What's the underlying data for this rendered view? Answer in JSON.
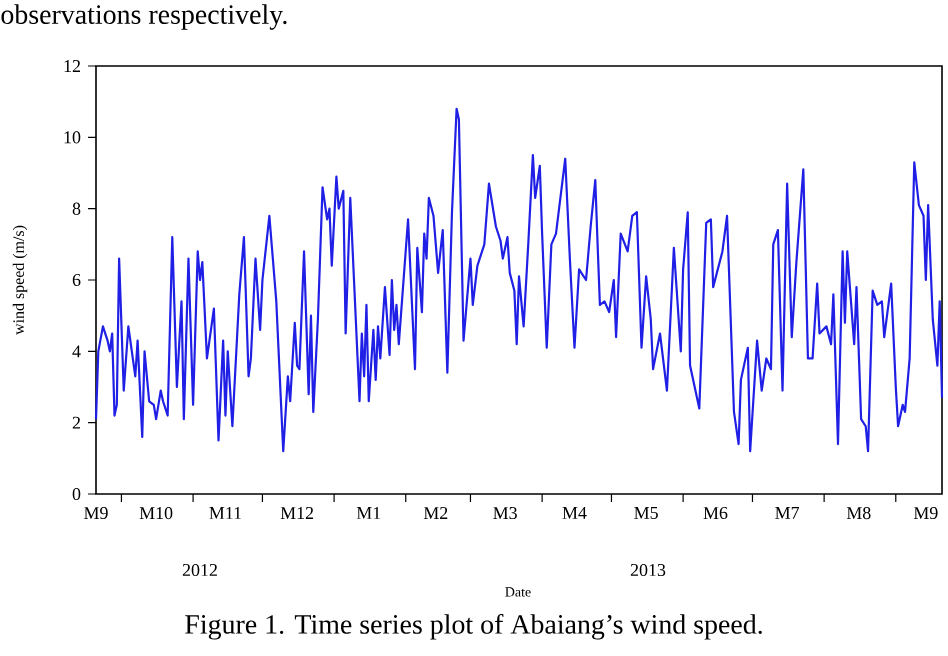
{
  "chart_data": {
    "type": "line",
    "title": "Figure 1. Time series plot of Abaiang’s wind speed.",
    "xlabel": "Date",
    "ylabel": "wind speed (m/s)",
    "annotations": [
      "observations respectively.",
      "2012",
      "2013"
    ],
    "xlim": [
      "2012-09-20",
      "2013-09-21"
    ],
    "xticks": [
      {
        "value": "2012-09-20",
        "label": "M9"
      },
      {
        "value": "2012-10-16",
        "label": "M10"
      },
      {
        "value": "2012-11-15",
        "label": "M11"
      },
      {
        "value": "2012-12-16",
        "label": "M12"
      },
      {
        "value": "2013-01-16",
        "label": "M1"
      },
      {
        "value": "2013-02-14",
        "label": "M2"
      },
      {
        "value": "2013-03-16",
        "label": "M3"
      },
      {
        "value": "2013-04-15",
        "label": "M4"
      },
      {
        "value": "2013-05-16",
        "label": "M5"
      },
      {
        "value": "2013-06-15",
        "label": "M6"
      },
      {
        "value": "2013-07-16",
        "label": "M7"
      },
      {
        "value": "2013-08-16",
        "label": "M8"
      },
      {
        "value": "2013-09-14",
        "label": "M9"
      },
      {
        "value": "2012-10-01",
        "label": null
      },
      {
        "value": "2012-11-01",
        "label": null
      },
      {
        "value": "2012-12-01",
        "label": null
      },
      {
        "value": "2013-01-01",
        "label": null
      },
      {
        "value": "2013-02-01",
        "label": null
      },
      {
        "value": "2013-03-01",
        "label": null
      },
      {
        "value": "2013-04-01",
        "label": null
      },
      {
        "value": "2013-05-01",
        "label": null
      },
      {
        "value": "2013-06-01",
        "label": null
      },
      {
        "value": "2013-07-01",
        "label": null
      },
      {
        "value": "2013-08-01",
        "label": null
      },
      {
        "value": "2013-09-01",
        "label": null
      }
    ],
    "ylim": [
      0,
      12
    ],
    "yticks": [
      0,
      2,
      4,
      6,
      8,
      10,
      12
    ],
    "series": [
      {
        "color": "#1f1fe6",
        "x": [
          "2012-09-20",
          "2012-09-21",
          "2012-09-23",
          "2012-09-25",
          "2012-09-26",
          "2012-09-27",
          "2012-09-28",
          "2012-09-29",
          "2012-09-30",
          "2012-10-02",
          "2012-10-04",
          "2012-10-07",
          "2012-10-08",
          "2012-10-10",
          "2012-10-11",
          "2012-10-13",
          "2012-10-15",
          "2012-10-16",
          "2012-10-18",
          "2012-10-19",
          "2012-10-21",
          "2012-10-23",
          "2012-10-25",
          "2012-10-27",
          "2012-10-28",
          "2012-10-30",
          "2012-11-01",
          "2012-11-03",
          "2012-11-04",
          "2012-11-05",
          "2012-11-07",
          "2012-11-10",
          "2012-11-12",
          "2012-11-14",
          "2012-11-15",
          "2012-11-16",
          "2012-11-18",
          "2012-11-21",
          "2012-11-23",
          "2012-11-25",
          "2012-11-26",
          "2012-11-28",
          "2012-11-30",
          "2012-12-01",
          "2012-12-04",
          "2012-12-07",
          "2012-12-10",
          "2012-12-12",
          "2012-12-13",
          "2012-12-15",
          "2012-12-16",
          "2012-12-17",
          "2012-12-19",
          "2012-12-21",
          "2012-12-22",
          "2012-12-23",
          "2012-12-25",
          "2012-12-27",
          "2012-12-29",
          "2012-12-30",
          "2012-12-31",
          "2013-01-02",
          "2013-01-03",
          "2013-01-05",
          "2013-01-06",
          "2013-01-08",
          "2013-01-12",
          "2013-01-13",
          "2013-01-14",
          "2013-01-15",
          "2013-01-16",
          "2013-01-18",
          "2013-01-19",
          "2013-01-20",
          "2013-01-21",
          "2013-01-23",
          "2013-01-25",
          "2013-01-26",
          "2013-01-27",
          "2013-01-28",
          "2013-01-29",
          "2013-02-02",
          "2013-02-05",
          "2013-02-06",
          "2013-02-08",
          "2013-02-09",
          "2013-02-10",
          "2013-02-11",
          "2013-02-13",
          "2013-02-15",
          "2013-02-17",
          "2013-02-19",
          "2013-02-21",
          "2013-02-23",
          "2013-02-24",
          "2013-02-26",
          "2013-03-01",
          "2013-03-02",
          "2013-03-04",
          "2013-03-07",
          "2013-03-09",
          "2013-03-11",
          "2013-03-12",
          "2013-03-14",
          "2013-03-15",
          "2013-03-17",
          "2013-03-18",
          "2013-03-20",
          "2013-03-21",
          "2013-03-22",
          "2013-03-24",
          "2013-03-26",
          "2013-03-28",
          "2013-03-29",
          "2013-03-31",
          "2013-04-01",
          "2013-04-03",
          "2013-04-05",
          "2013-04-07",
          "2013-04-11",
          "2013-04-13",
          "2013-04-15",
          "2013-04-17",
          "2013-04-20",
          "2013-04-22",
          "2013-04-24",
          "2013-04-25",
          "2013-04-26",
          "2013-04-28",
          "2013-04-30",
          "2013-05-02",
          "2013-05-03",
          "2013-05-05",
          "2013-05-08",
          "2013-05-10",
          "2013-05-12",
          "2013-05-14",
          "2013-05-16",
          "2013-05-18",
          "2013-05-19",
          "2013-05-22",
          "2013-05-25",
          "2013-05-28",
          "2013-05-31",
          "2013-06-01",
          "2013-06-03",
          "2013-06-04",
          "2013-06-08",
          "2013-06-11",
          "2013-06-13",
          "2013-06-14",
          "2013-06-18",
          "2013-06-20",
          "2013-06-23",
          "2013-06-25",
          "2013-06-26",
          "2013-06-29",
          "2013-06-30",
          "2013-07-03",
          "2013-07-05",
          "2013-07-07",
          "2013-07-09",
          "2013-07-10",
          "2013-07-12",
          "2013-07-14",
          "2013-07-16",
          "2013-07-18",
          "2013-07-20",
          "2013-07-23",
          "2013-07-25",
          "2013-07-27",
          "2013-07-29",
          "2013-07-30",
          "2013-08-02",
          "2013-08-04",
          "2013-08-05",
          "2013-08-07",
          "2013-08-09",
          "2013-08-10",
          "2013-08-11",
          "2013-08-14",
          "2013-08-15",
          "2013-08-17",
          "2013-08-19",
          "2013-08-20",
          "2013-08-22",
          "2013-08-24",
          "2013-08-26",
          "2013-08-27",
          "2013-08-30",
          "2013-09-01",
          "2013-09-02",
          "2013-09-04",
          "2013-09-05",
          "2013-09-07",
          "2013-09-09",
          "2013-09-11",
          "2013-09-13",
          "2013-09-14",
          "2013-09-15",
          "2013-09-17",
          "2013-09-19",
          "2013-09-20",
          "2013-09-21"
        ],
        "values": [
          2.1,
          4.0,
          4.7,
          4.3,
          4.0,
          4.5,
          2.2,
          2.5,
          6.6,
          2.9,
          4.7,
          3.3,
          4.3,
          1.6,
          4.0,
          2.6,
          2.5,
          2.1,
          2.9,
          2.6,
          2.2,
          7.2,
          3.0,
          5.4,
          2.1,
          6.6,
          2.5,
          6.8,
          6.0,
          6.5,
          3.8,
          5.2,
          1.5,
          4.3,
          2.2,
          4.0,
          1.9,
          5.6,
          7.2,
          3.3,
          3.8,
          6.6,
          4.6,
          6.0,
          7.8,
          5.4,
          1.2,
          3.3,
          2.6,
          4.8,
          3.6,
          3.5,
          6.8,
          2.8,
          5.0,
          2.3,
          4.9,
          8.6,
          7.7,
          8.0,
          6.4,
          8.9,
          8.0,
          8.5,
          4.5,
          8.3,
          2.6,
          4.5,
          3.3,
          5.3,
          2.6,
          4.6,
          3.2,
          4.7,
          3.8,
          5.8,
          3.9,
          6.0,
          4.6,
          5.3,
          4.2,
          7.7,
          3.5,
          6.9,
          5.1,
          7.3,
          6.6,
          8.3,
          7.8,
          6.2,
          7.4,
          3.4,
          7.9,
          10.8,
          10.5,
          4.3,
          6.6,
          5.3,
          6.4,
          7.0,
          8.7,
          7.9,
          7.5,
          7.1,
          6.6,
          7.2,
          6.2,
          5.7,
          4.2,
          6.1,
          4.7,
          7.0,
          9.5,
          8.3,
          9.2,
          7.3,
          4.1,
          7.0,
          7.3,
          9.4,
          6.6,
          4.1,
          6.3,
          6.0,
          7.5,
          8.8,
          7.0,
          5.3,
          5.4,
          5.1,
          6.0,
          4.4,
          7.3,
          6.8,
          7.8,
          7.9,
          4.1,
          6.1,
          4.9,
          3.5,
          4.5,
          2.9,
          6.9,
          4.0,
          6.3,
          7.9,
          3.6,
          2.4,
          7.6,
          7.7,
          5.8,
          6.8,
          7.8,
          2.3,
          1.4,
          3.2,
          4.1,
          1.2,
          4.3,
          2.9,
          3.8,
          3.5,
          7.0,
          7.4,
          2.9,
          8.7,
          4.4,
          6.5,
          9.1,
          3.8,
          3.8,
          5.9,
          4.5,
          4.7,
          4.2,
          5.6,
          1.4,
          6.8,
          4.8,
          6.8,
          4.2,
          5.8,
          2.1,
          1.9,
          1.2,
          5.7,
          5.3,
          5.4,
          4.4,
          5.9,
          3.0,
          1.9,
          2.5,
          2.3,
          3.8,
          9.3,
          8.1,
          7.8,
          6.0,
          8.1,
          4.9,
          3.6,
          5.4,
          2.7
        ]
      }
    ]
  }
}
